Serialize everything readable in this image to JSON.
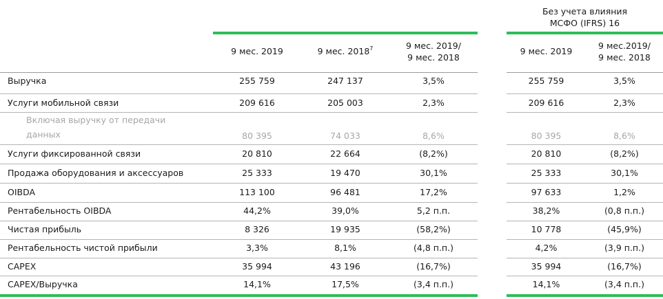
{
  "header": {
    "ifrs_title_1": "Без учета влияния",
    "ifrs_title_2": "МСФО (IFRS) 16",
    "col1": "9 мес. 2019",
    "col2": "9 мес. 2018",
    "col2_sup": "7",
    "col3_1": "9 мес. 2019/",
    "col3_2": "9 мес. 2018",
    "col4": "9 мес. 2019",
    "col5_1": "9 мес.2019/",
    "col5_2": "9 мес. 2018"
  },
  "rows": [
    {
      "label": "Выручка",
      "v1": "255 759",
      "v2": "247 137",
      "v3": "3,5%",
      "v4": "255 759",
      "v5": "3,5%"
    },
    {
      "label": "Услуги мобильной связи",
      "v1": "209 616",
      "v2": "205 003",
      "v3": "2,3%",
      "v4": "209 616",
      "v5": "2,3%"
    },
    {
      "label_1": "Включая выручку от передачи",
      "label_2": "данных",
      "v1": "80 395",
      "v2": "74 033",
      "v3": "8,6%",
      "v4": "80 395",
      "v5": "8,6%"
    },
    {
      "label": "Услуги фиксированной связи",
      "v1": "20 810",
      "v2": "22 664",
      "v3": "(8,2%)",
      "v4": "20 810",
      "v5": "(8,2%)"
    },
    {
      "label": "Продажа оборудования и аксессуаров",
      "v1": "25 333",
      "v2": "19 470",
      "v3": "30,1%",
      "v4": "25 333",
      "v5": "30,1%"
    },
    {
      "label": "OIBDA",
      "v1": "113 100",
      "v2": "96 481",
      "v3": "17,2%",
      "v4": "97 633",
      "v5": "1,2%"
    },
    {
      "label": "Рентабельность OIBDA",
      "v1": "44,2%",
      "v2": "39,0%",
      "v3": "5,2 п.п.",
      "v4": "38,2%",
      "v5": "(0,8 п.п.)"
    },
    {
      "label": "Чистая прибыль",
      "v1": "8 326",
      "v2": "19 935",
      "v3": "(58,2%)",
      "v4": "10 778",
      "v5": "(45,9%)"
    },
    {
      "label": "Рентабельность чистой прибыли",
      "v1": "3,3%",
      "v2": "8,1%",
      "v3": "(4,8 п.п.)",
      "v4": "4,2%",
      "v5": "(3,9 п.п.)"
    },
    {
      "label": "CAPEX",
      "v1": "35 994",
      "v2": "43 196",
      "v3": "(16,7%)",
      "v4": "35 994",
      "v5": "(16,7%)"
    },
    {
      "label": "CAPEX/Выручка",
      "v1": "14,1%",
      "v2": "17,5%",
      "v3": "(3,4 п.п.)",
      "v4": "14,1%",
      "v5": "(3,4 п.п.)"
    }
  ],
  "colors": {
    "accent": "#2ebd59",
    "muted_text": "#a6a6a6",
    "divider": "#b3b3b3"
  }
}
